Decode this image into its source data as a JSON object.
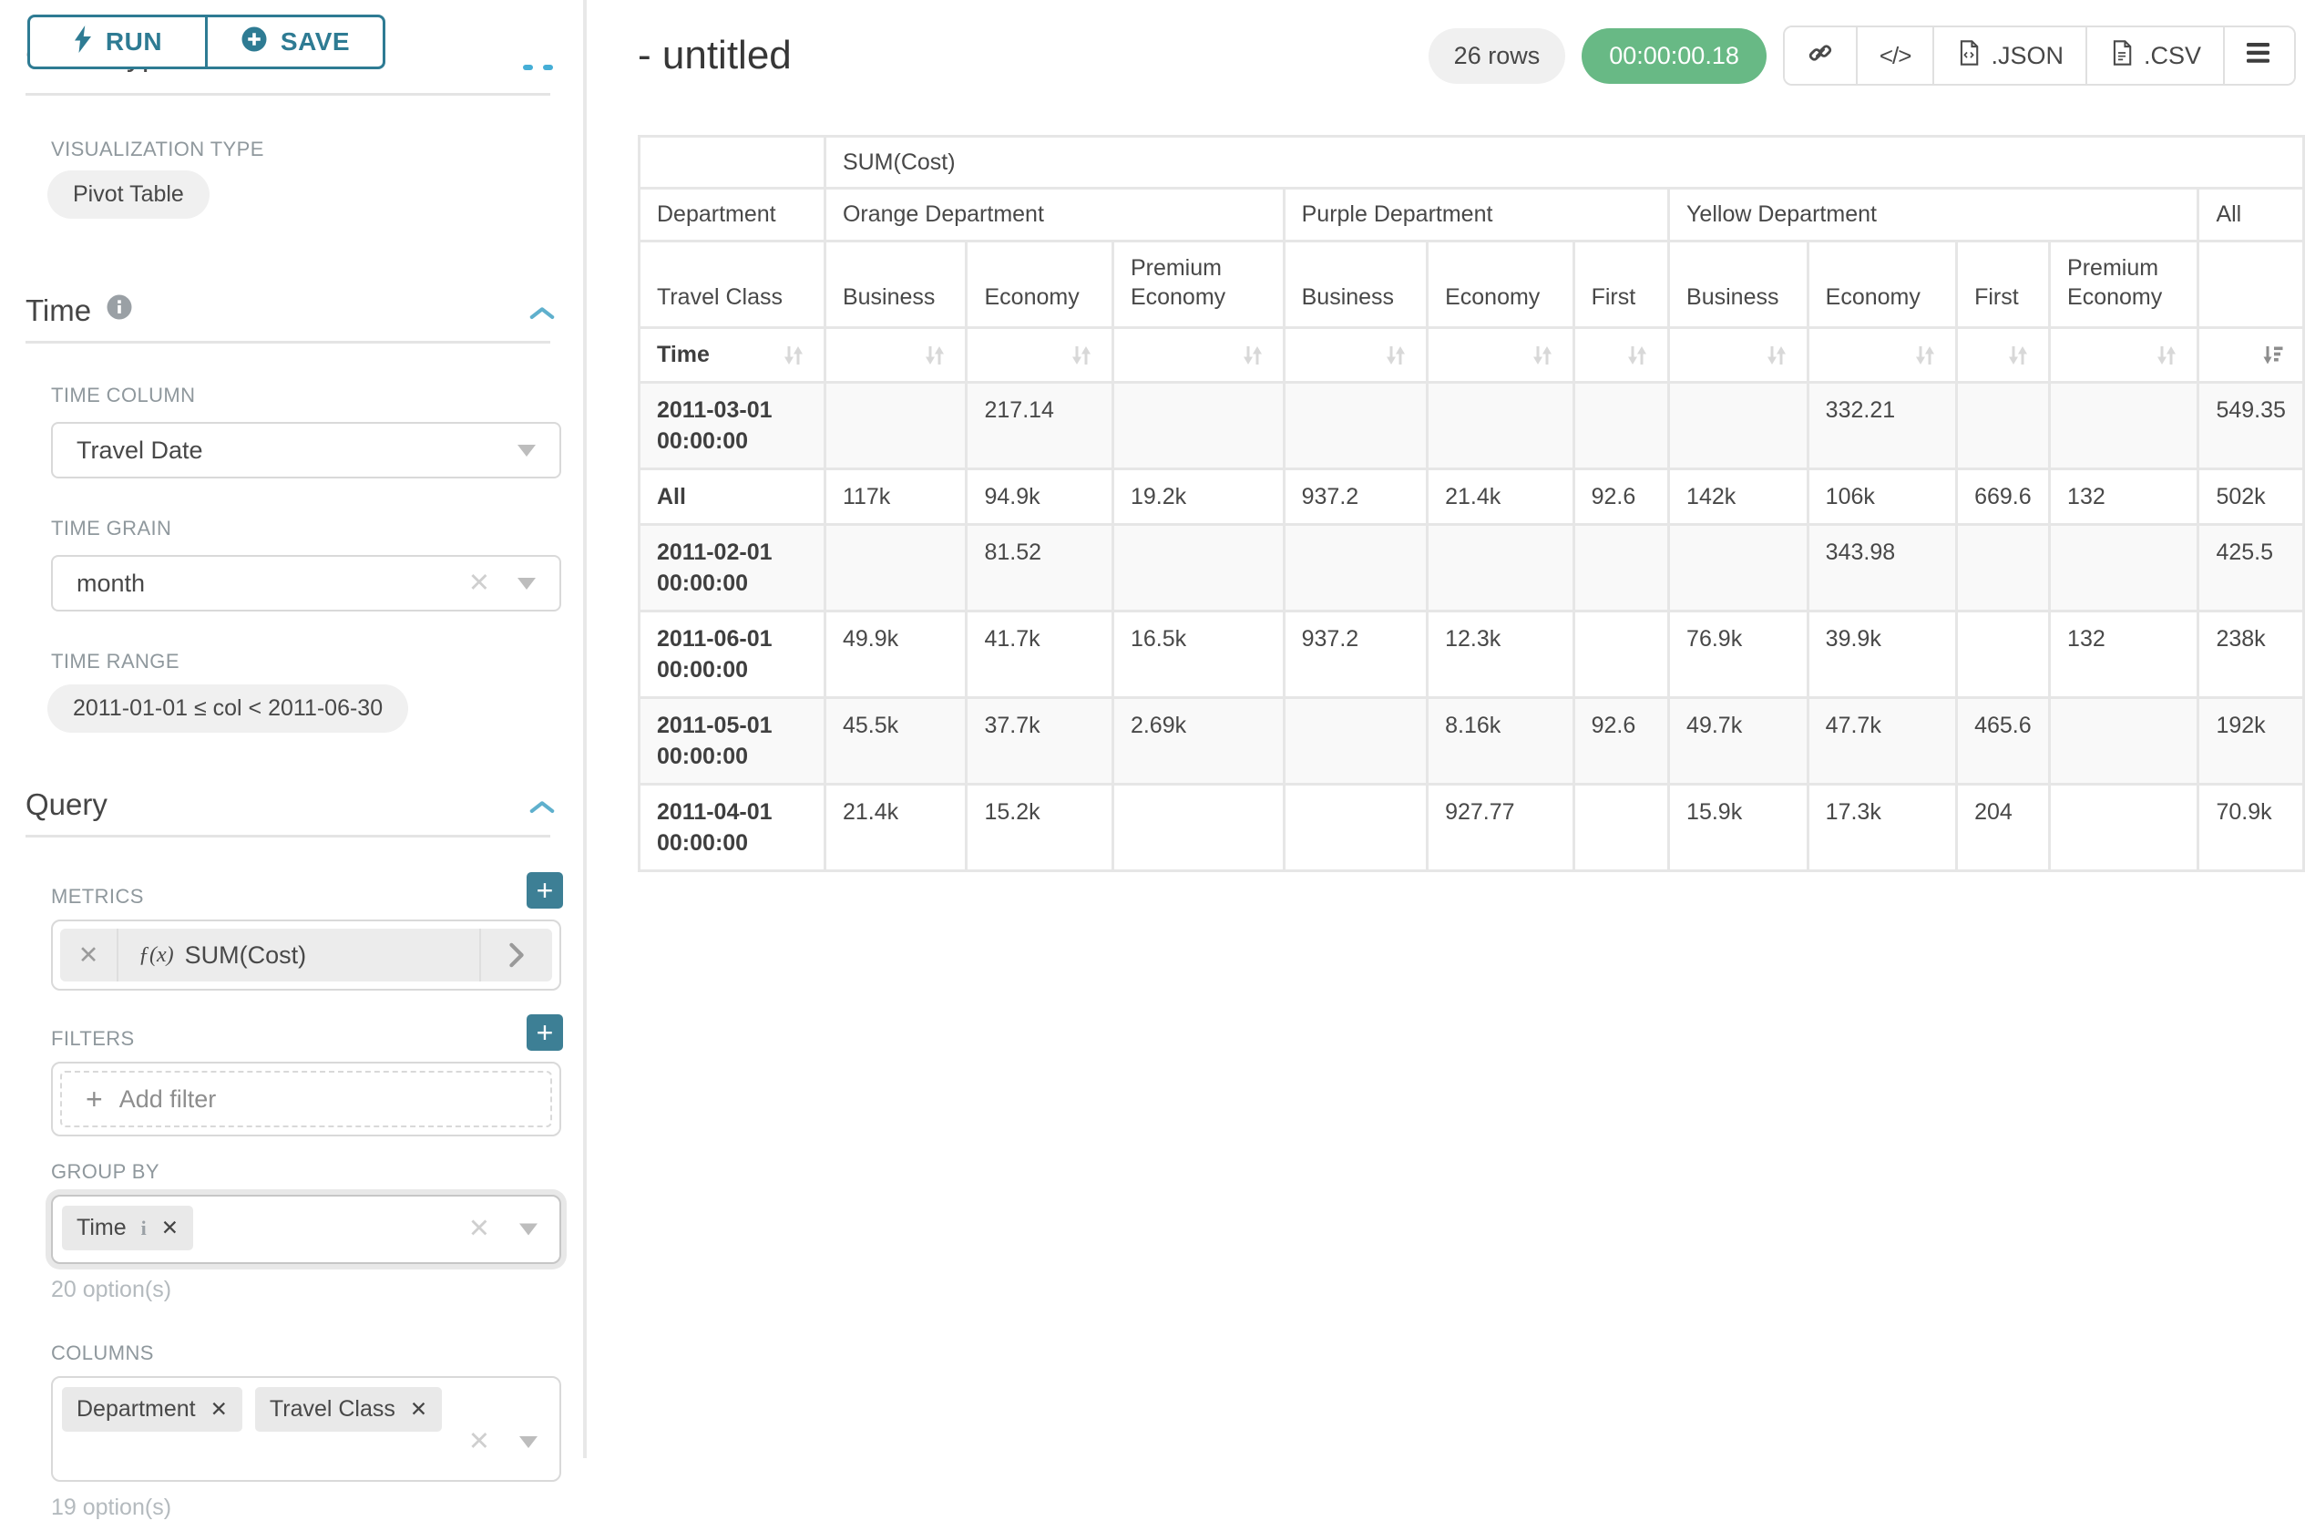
{
  "colors": {
    "accent_teal": "#2e7b93",
    "plus_button_teal": "#3d7f95",
    "success_green": "#68b985",
    "chip_gray": "#e9e9e9",
    "border_gray": "#e6e6e6"
  },
  "sidebar": {
    "run_label": "RUN",
    "save_label": "SAVE",
    "chart_type_heading": "Chart Type",
    "visualization_type_label": "VISUALIZATION TYPE",
    "visualization_type_value": "Pivot Table",
    "time_section": {
      "title": "Time",
      "time_column_label": "TIME COLUMN",
      "time_column_value": "Travel Date",
      "time_grain_label": "TIME GRAIN",
      "time_grain_value": "month",
      "time_range_label": "TIME RANGE",
      "time_range_value": "2011-01-01 ≤ col < 2011-06-30"
    },
    "query_section": {
      "title": "Query",
      "metrics_label": "METRICS",
      "metric_fx": "ƒ(x)",
      "metric_value": "SUM(Cost)",
      "filters_label": "FILTERS",
      "add_filter_label": "Add filter",
      "group_by_label": "GROUP BY",
      "group_by_chips": [
        {
          "label": "Time",
          "info": true
        }
      ],
      "group_by_options_note": "20 option(s)",
      "columns_label": "COLUMNS",
      "columns_chips": [
        {
          "label": "Department"
        },
        {
          "label": "Travel Class"
        }
      ],
      "columns_options_note": "19 option(s)"
    }
  },
  "header": {
    "title": "- untitled",
    "rows_badge": "26 rows",
    "timer_badge": "00:00:00.18",
    "json_button_label": ".JSON",
    "csv_button_label": ".CSV"
  },
  "pivot": {
    "metric_header": "SUM(Cost)",
    "col_dim_label": "Department",
    "row_subdim_label": "Travel Class",
    "sort_dim_label": "Time",
    "sorted_column": "All",
    "sorted_direction": "descending",
    "col_groups": [
      {
        "name": "Orange Department",
        "classes": [
          "Business",
          "Economy",
          "Premium Economy"
        ]
      },
      {
        "name": "Purple Department",
        "classes": [
          "Business",
          "Economy",
          "First"
        ]
      },
      {
        "name": "Yellow Department",
        "classes": [
          "Business",
          "Economy",
          "First",
          "Premium Economy"
        ]
      },
      {
        "name": "All",
        "classes": [
          ""
        ]
      }
    ],
    "rows": [
      {
        "label": "2011-03-01 00:00:00",
        "values": [
          "",
          "217.14",
          "",
          "",
          "",
          "",
          "",
          "332.21",
          "",
          "",
          "549.35"
        ]
      },
      {
        "label": "All",
        "values": [
          "117k",
          "94.9k",
          "19.2k",
          "937.2",
          "21.4k",
          "92.6",
          "142k",
          "106k",
          "669.6",
          "132",
          "502k"
        ]
      },
      {
        "label": "2011-02-01 00:00:00",
        "values": [
          "",
          "81.52",
          "",
          "",
          "",
          "",
          "",
          "343.98",
          "",
          "",
          "425.5"
        ]
      },
      {
        "label": "2011-06-01 00:00:00",
        "values": [
          "49.9k",
          "41.7k",
          "16.5k",
          "937.2",
          "12.3k",
          "",
          "76.9k",
          "39.9k",
          "",
          "132",
          "238k"
        ]
      },
      {
        "label": "2011-05-01 00:00:00",
        "values": [
          "45.5k",
          "37.7k",
          "2.69k",
          "",
          "8.16k",
          "92.6",
          "49.7k",
          "47.7k",
          "465.6",
          "",
          "192k"
        ]
      },
      {
        "label": "2011-04-01 00:00:00",
        "values": [
          "21.4k",
          "15.2k",
          "",
          "",
          "927.77",
          "",
          "15.9k",
          "17.3k",
          "204",
          "",
          "70.9k"
        ]
      }
    ]
  }
}
